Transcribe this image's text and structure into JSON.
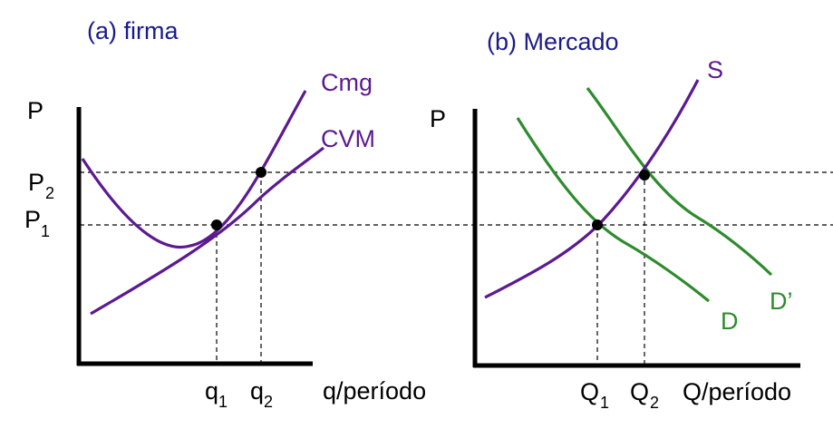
{
  "panel_a": {
    "title": "(a) firma",
    "y_axis_label": "P",
    "x_axis_label": "q/período",
    "p2_main": "P",
    "p2_sub": "2",
    "p1_main": "P",
    "p1_sub": "1",
    "q1_main": "q",
    "q1_sub": "1",
    "q2_main": "q",
    "q2_sub": "2",
    "curve_cmg": "Cmg",
    "curve_cvm": "CVM"
  },
  "panel_b": {
    "title": "(b) Mercado",
    "y_axis_label": "P",
    "x_axis_label": "Q/período",
    "Q1_main": "Q",
    "Q1_sub": "1",
    "Q2_main": "Q",
    "Q2_sub": "2",
    "curve_s": "S",
    "curve_d": "D",
    "curve_d_prime": "D’"
  },
  "colors": {
    "title": "#1a1a8c",
    "cost_curves": "#5b1a91",
    "demand_curves": "#2e8b2e",
    "axes": "#000000"
  }
}
